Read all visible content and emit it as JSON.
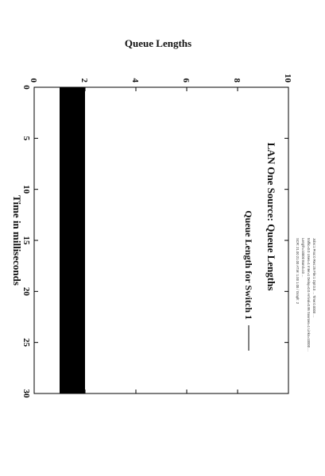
{
  "header_lines": [
    "Jobs:1 Proc:0 Res:25 File:1 Opt:0.0 ... Time:0.0000 ...",
    "traffic=0.0 Uses=1 Inter=1 Delay=0.0 Arrival=0.95 Sources=1 Links=10000 ...",
    "Length=10000 Band=10 ...",
    "SCR: 21.00 21.00 AT.M: 1.00 1.00 / Graph: 2"
  ],
  "chart_data": {
    "type": "area",
    "title": "LAN One Source: Queue Lengths",
    "xlabel": "Time in milliseconds",
    "ylabel": "Queue Lengths",
    "xlim": [
      0,
      30
    ],
    "ylim": [
      0,
      10
    ],
    "x_ticks": [
      "0",
      "5",
      "10",
      "15",
      "20",
      "25",
      "30"
    ],
    "y_ticks": [
      "0",
      "2",
      "4",
      "6",
      "8",
      "10"
    ],
    "grid": false,
    "legend_position": "top-right",
    "series": [
      {
        "name": "Queue Length for Switch 1",
        "x": [
          0,
          30
        ],
        "y_low": [
          1,
          1
        ],
        "y_high": [
          2,
          2
        ],
        "color": "#000000"
      }
    ]
  }
}
